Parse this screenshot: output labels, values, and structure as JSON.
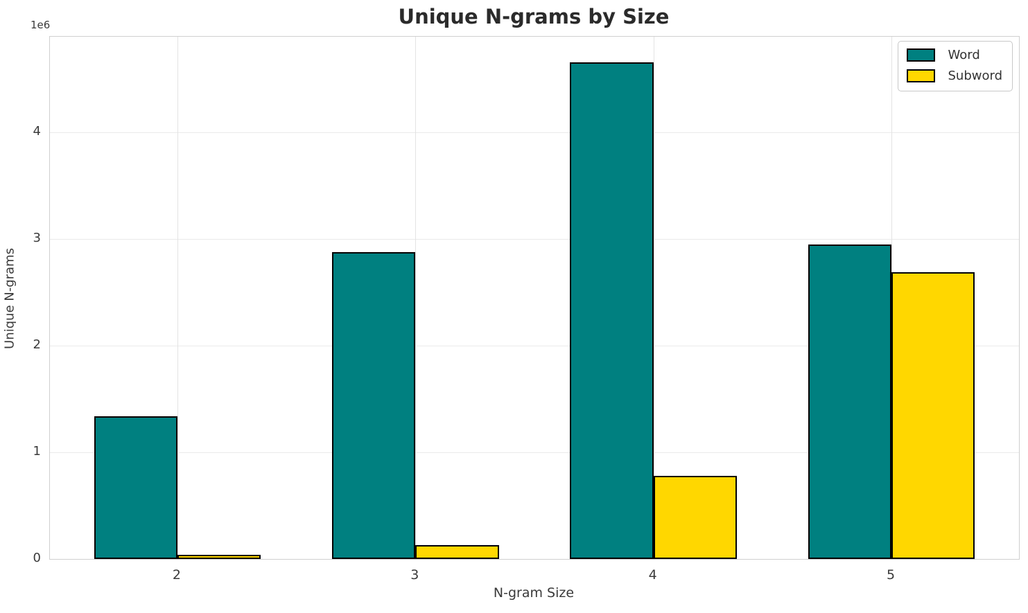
{
  "chart_data": {
    "type": "bar",
    "title": "Unique N-grams by Size",
    "xlabel": "N-gram Size",
    "ylabel": "Unique N-grams",
    "offset_label": "1e6",
    "categories": [
      "2",
      "3",
      "4",
      "5"
    ],
    "series": [
      {
        "name": "Word",
        "color": "#008080",
        "values": [
          1340000,
          2880000,
          4660000,
          2950000
        ]
      },
      {
        "name": "Subword",
        "color": "#FFD700",
        "values": [
          40000,
          130000,
          780000,
          2690000
        ]
      }
    ],
    "ylim": [
      0,
      4900000
    ],
    "yticks": [
      0,
      1000000,
      2000000,
      3000000,
      4000000
    ],
    "ytick_labels": [
      "0",
      "1",
      "2",
      "3",
      "4"
    ],
    "grid": true,
    "legend_position": "upper right",
    "bar_edge_color": "#000000",
    "colors": {
      "background": "#ffffff",
      "gridline": "#eaeaea",
      "spine": "#cfcfcf",
      "text": "#3a3a3a",
      "title_text": "#2b2b2b"
    }
  }
}
